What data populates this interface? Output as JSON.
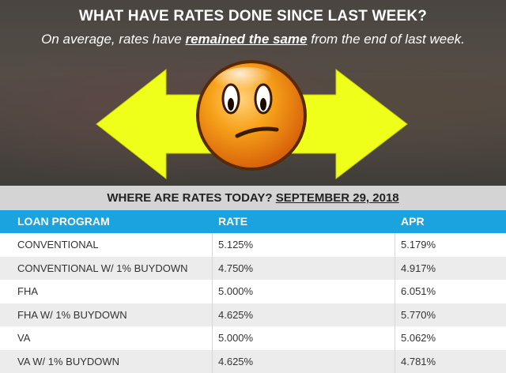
{
  "header": {
    "title": "WHAT HAVE RATES DONE SINCE LAST WEEK?",
    "subtitle_before": "On average, rates have ",
    "subtitle_highlight": "remained the same",
    "subtitle_after": " from the end of last week."
  },
  "icons": {
    "left_arrow": "left-arrow",
    "right_arrow": "right-arrow",
    "face": "confused-face-emoji"
  },
  "colors": {
    "arrow": "#f0ff1a",
    "table_header": "#1aa3de",
    "subheader_bg": "#d4d4d4"
  },
  "subheader": {
    "prefix": "WHERE ARE RATES TODAY? ",
    "date": "SEPTEMBER 29, 2018"
  },
  "table": {
    "columns": [
      "LOAN PROGRAM",
      "RATE",
      "APR"
    ],
    "rows": [
      [
        "CONVENTIONAL",
        "5.125%",
        "5.179%"
      ],
      [
        "CONVENTIONAL W/ 1% BUYDOWN",
        "4.750%",
        "4.917%"
      ],
      [
        "FHA",
        "5.000%",
        "6.051%"
      ],
      [
        "FHA W/ 1% BUYDOWN",
        "4.625%",
        "5.770%"
      ],
      [
        "VA",
        "5.000%",
        "5.062%"
      ],
      [
        "VA W/ 1% BUYDOWN",
        "4.625%",
        "4.781%"
      ]
    ]
  }
}
